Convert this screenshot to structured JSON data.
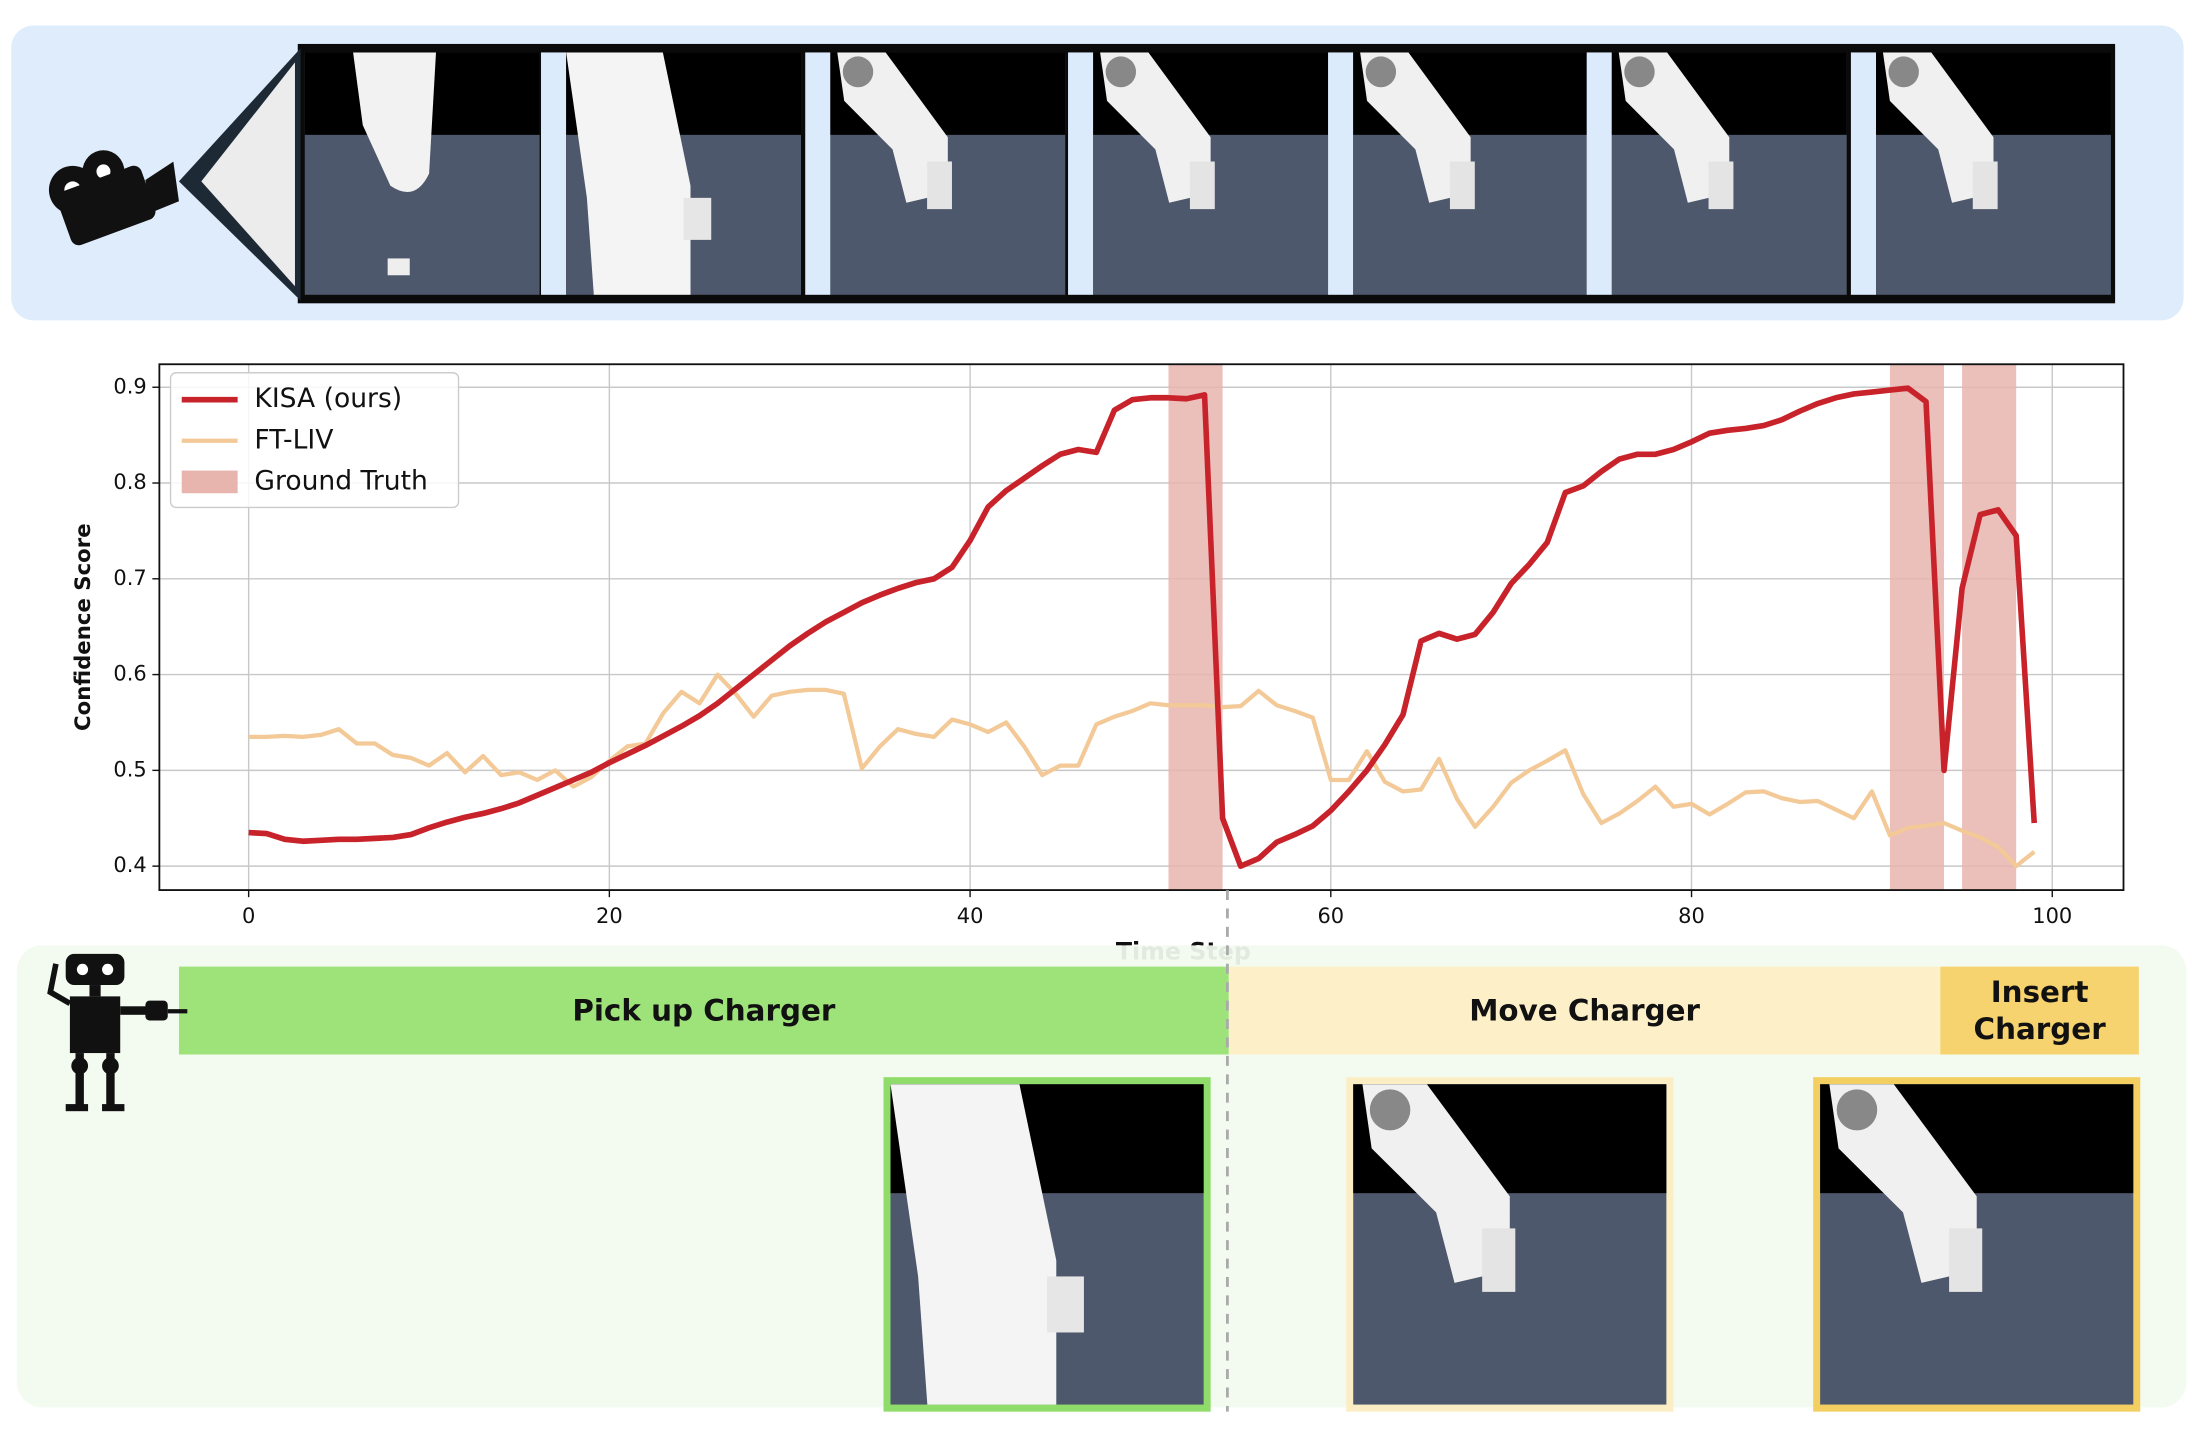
{
  "chart_data": {
    "type": "line",
    "xlabel": "Time Step",
    "ylabel": "Confidence Score",
    "x": [
      0,
      1,
      2,
      3,
      4,
      5,
      6,
      7,
      8,
      9,
      10,
      11,
      12,
      13,
      14,
      15,
      16,
      17,
      18,
      19,
      20,
      21,
      22,
      23,
      24,
      25,
      26,
      27,
      28,
      29,
      30,
      31,
      32,
      33,
      34,
      35,
      36,
      37,
      38,
      39,
      40,
      41,
      42,
      43,
      44,
      45,
      46,
      47,
      48,
      49,
      50,
      51,
      52,
      53,
      54,
      55,
      56,
      57,
      58,
      59,
      60,
      61,
      62,
      63,
      64,
      65,
      66,
      67,
      68,
      69,
      70,
      71,
      72,
      73,
      74,
      75,
      76,
      77,
      78,
      79,
      80,
      81,
      82,
      83,
      84,
      85,
      86,
      87,
      88,
      89,
      90,
      91,
      92,
      93,
      94,
      95,
      96,
      97,
      98,
      99
    ],
    "series": [
      {
        "name": "KISA (ours)",
        "color": "#c8232a",
        "values": [
          0.435,
          0.434,
          0.428,
          0.426,
          0.427,
          0.428,
          0.428,
          0.429,
          0.43,
          0.433,
          0.44,
          0.446,
          0.451,
          0.455,
          0.46,
          0.466,
          0.474,
          0.482,
          0.49,
          0.498,
          0.508,
          0.517,
          0.526,
          0.536,
          0.546,
          0.557,
          0.57,
          0.585,
          0.6,
          0.615,
          0.63,
          0.643,
          0.655,
          0.665,
          0.675,
          0.683,
          0.69,
          0.696,
          0.7,
          0.712,
          0.74,
          0.775,
          0.792,
          0.805,
          0.818,
          0.83,
          0.835,
          0.832,
          0.876,
          0.887,
          0.889,
          0.889,
          0.888,
          0.892,
          0.45,
          0.4,
          0.408,
          0.425,
          0.433,
          0.442,
          0.458,
          0.478,
          0.5,
          0.527,
          0.558,
          0.635,
          0.643,
          0.637,
          0.642,
          0.665,
          0.695,
          0.715,
          0.738,
          0.79,
          0.797,
          0.812,
          0.825,
          0.83,
          0.83,
          0.835,
          0.843,
          0.852,
          0.855,
          0.857,
          0.86,
          0.866,
          0.875,
          0.883,
          0.889,
          0.893,
          0.895,
          0.897,
          0.899,
          0.885,
          0.5,
          0.69,
          0.767,
          0.772,
          0.745,
          0.445
        ]
      },
      {
        "name": "FT-LIV",
        "color": "#f3c997",
        "values": [
          0.535,
          0.535,
          0.536,
          0.535,
          0.537,
          0.543,
          0.528,
          0.528,
          0.516,
          0.513,
          0.505,
          0.518,
          0.498,
          0.515,
          0.495,
          0.498,
          0.49,
          0.5,
          0.483,
          0.493,
          0.51,
          0.525,
          0.528,
          0.56,
          0.582,
          0.57,
          0.6,
          0.58,
          0.556,
          0.578,
          0.582,
          0.584,
          0.584,
          0.58,
          0.502,
          0.525,
          0.543,
          0.538,
          0.535,
          0.553,
          0.548,
          0.54,
          0.55,
          0.525,
          0.495,
          0.505,
          0.505,
          0.548,
          0.556,
          0.562,
          0.57,
          0.568,
          0.568,
          0.568,
          0.566,
          0.567,
          0.583,
          0.568,
          0.562,
          0.555,
          0.49,
          0.49,
          0.52,
          0.488,
          0.478,
          0.48,
          0.512,
          0.47,
          0.441,
          0.462,
          0.487,
          0.5,
          0.51,
          0.521,
          0.475,
          0.445,
          0.455,
          0.468,
          0.483,
          0.462,
          0.465,
          0.454,
          0.465,
          0.477,
          0.478,
          0.471,
          0.467,
          0.468,
          0.459,
          0.45,
          0.478,
          0.432,
          0.44,
          0.442,
          0.445,
          0.437,
          0.43,
          0.42,
          0.4,
          0.415
        ]
      }
    ],
    "ground_truth": {
      "name": "Ground Truth",
      "color": "#e8b4ae",
      "spans": [
        [
          51,
          54
        ],
        [
          91,
          94
        ],
        [
          95,
          98
        ]
      ]
    },
    "xlim": [
      -4.95,
      103.95
    ],
    "ylim": [
      0.375,
      0.924
    ],
    "xticks": [
      0,
      20,
      40,
      60,
      80,
      100
    ],
    "yticks": [
      0.4,
      0.5,
      0.6,
      0.7,
      0.8,
      0.9
    ],
    "grid": true,
    "legend": "upper left"
  },
  "phases": [
    {
      "label": "Pick up Charger"
    },
    {
      "label": "Move Charger"
    },
    {
      "label": "Insert Charger"
    }
  ]
}
